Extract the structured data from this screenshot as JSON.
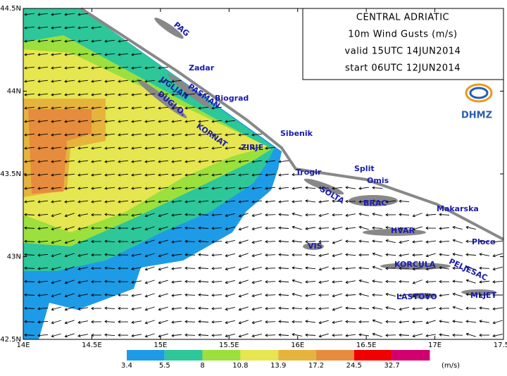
{
  "header": {
    "lines": [
      "CENTRAL ADRIATIC",
      "10m Wind Gusts (m/s)",
      "valid 15UTC 14JUN2014",
      "start 06UTC 12JUN2014"
    ],
    "logo": "DHMZ"
  },
  "axes": {
    "x_ticks": [
      {
        "value": 14,
        "label": "14E"
      },
      {
        "value": 14.5,
        "label": "14.5E"
      },
      {
        "value": 15,
        "label": "15E"
      },
      {
        "value": 15.5,
        "label": "15.5E"
      },
      {
        "value": 16,
        "label": "16E"
      },
      {
        "value": 16.5,
        "label": "16.5E"
      },
      {
        "value": 17,
        "label": "17E"
      },
      {
        "value": 17.5,
        "label": "17.5E"
      }
    ],
    "y_ticks": [
      {
        "value": 42.5,
        "label": "42.5N"
      },
      {
        "value": 43,
        "label": "43N"
      },
      {
        "value": 43.5,
        "label": "43.5N"
      },
      {
        "value": 44,
        "label": "44N"
      },
      {
        "value": 44.5,
        "label": "44.5N"
      }
    ]
  },
  "places": [
    "PAG",
    "Zadar",
    "UGLJAN",
    "PASMAN",
    "Biograd",
    "DUGI O.",
    "KORNAT",
    "Sibenik",
    "ZIRJE",
    "Trogir",
    "Split",
    "Omis",
    "SOLTA",
    "BRAC",
    "Makarska",
    "HVAR",
    "VIS",
    "Ploce",
    "KORCULA",
    "PELJESAC",
    "LASTOVO",
    "MLJET"
  ],
  "legend": {
    "levels": [
      3.4,
      5.5,
      8,
      10.8,
      13.9,
      17.2,
      24.5,
      32.7
    ],
    "colors": [
      "#1e9be6",
      "#2dc79a",
      "#9be03c",
      "#e6e650",
      "#e6b43c",
      "#e68c3c",
      "#f00000",
      "#d2006e"
    ],
    "unit": "(m/s)"
  }
}
